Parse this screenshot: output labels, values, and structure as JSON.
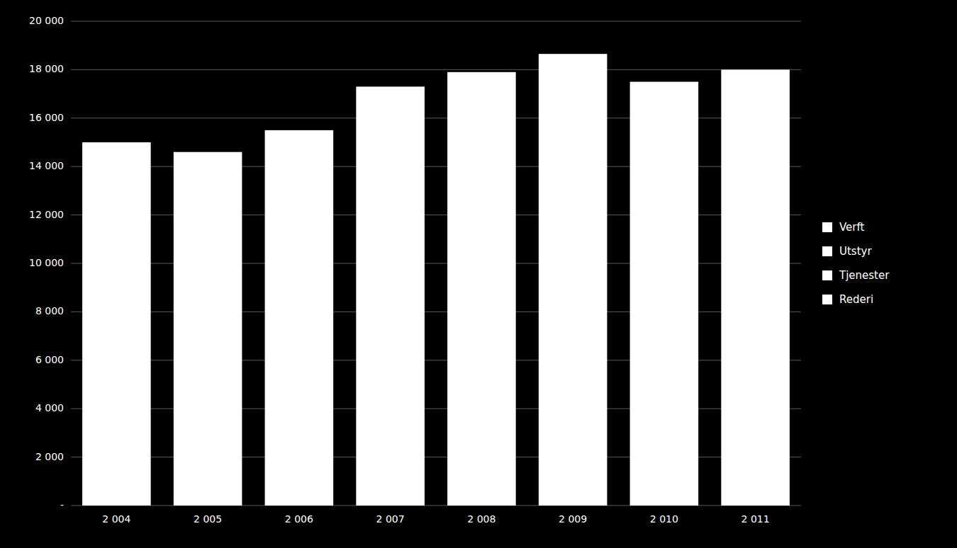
{
  "chart_data": {
    "type": "bar",
    "categories": [
      "2 004",
      "2 005",
      "2 006",
      "2 007",
      "2 008",
      "2 009",
      "2 010",
      "2 011"
    ],
    "values": [
      15000,
      14600,
      15500,
      17300,
      17900,
      18650,
      17500,
      18000
    ],
    "color": "#ffffff",
    "ylim": [
      0,
      20000
    ],
    "yticks": [
      {
        "value": 0,
        "label": "-"
      },
      {
        "value": 2000,
        "label": "2 000"
      },
      {
        "value": 4000,
        "label": "4 000"
      },
      {
        "value": 6000,
        "label": "6 000"
      },
      {
        "value": 8000,
        "label": "8 000"
      },
      {
        "value": 10000,
        "label": "10 000"
      },
      {
        "value": 12000,
        "label": "12 000"
      },
      {
        "value": 14000,
        "label": "14 000"
      },
      {
        "value": 16000,
        "label": "16 000"
      },
      {
        "value": 18000,
        "label": "18 000"
      },
      {
        "value": 20000,
        "label": "20 000"
      }
    ],
    "grid": true,
    "legend": "right",
    "legend_labels": [
      "Verft",
      "Utstyr",
      "Tjenester",
      "Rederi"
    ],
    "legend_colors": [
      "#ffffff",
      "#ffffff",
      "#ffffff",
      "#ffffff"
    ]
  }
}
